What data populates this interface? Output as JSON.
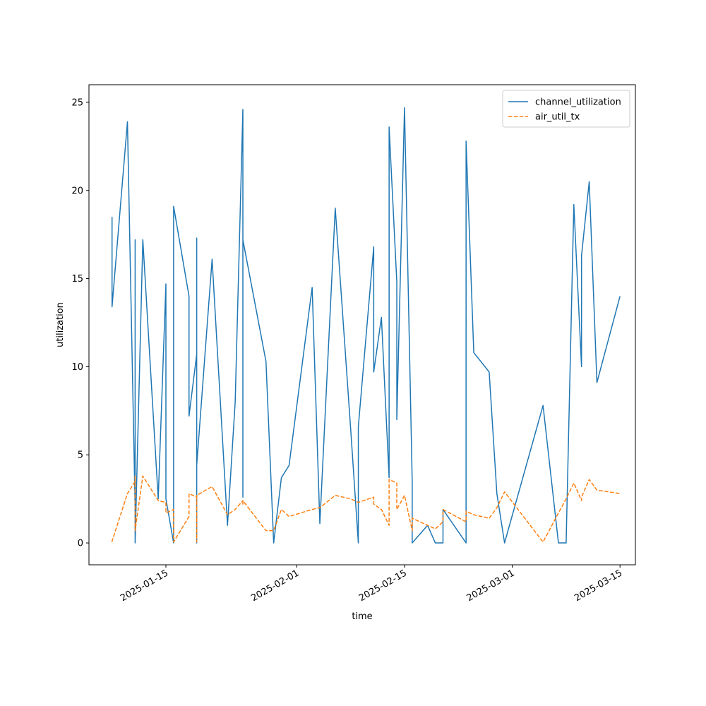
{
  "chart_data": {
    "type": "line",
    "xlabel": "time",
    "ylabel": "utilization",
    "x": [
      "2025-01-08",
      "2025-01-08",
      "2025-01-10",
      "2025-01-11",
      "2025-01-11",
      "2025-01-11",
      "2025-01-12",
      "2025-01-14",
      "2025-01-15",
      "2025-01-15",
      "2025-01-16",
      "2025-01-16",
      "2025-01-18",
      "2025-01-18",
      "2025-01-19",
      "2025-01-19",
      "2025-01-19",
      "2025-01-19",
      "2025-01-21",
      "2025-01-23",
      "2025-01-24",
      "2025-01-25",
      "2025-01-25",
      "2025-01-25",
      "2025-01-28",
      "2025-01-29",
      "2025-01-30",
      "2025-01-31",
      "2025-02-03",
      "2025-02-04",
      "2025-02-06",
      "2025-02-08",
      "2025-02-09",
      "2025-02-09",
      "2025-02-11",
      "2025-02-11",
      "2025-02-12",
      "2025-02-13",
      "2025-02-13",
      "2025-02-14",
      "2025-02-14",
      "2025-02-15",
      "2025-02-16",
      "2025-02-16",
      "2025-02-18",
      "2025-02-19",
      "2025-02-20",
      "2025-02-20",
      "2025-02-23",
      "2025-02-23",
      "2025-02-24",
      "2025-02-26",
      "2025-02-27",
      "2025-02-28",
      "2025-03-05",
      "2025-03-07",
      "2025-03-08",
      "2025-03-09",
      "2025-03-10",
      "2025-03-10",
      "2025-03-11",
      "2025-03-12",
      "2025-03-15"
    ],
    "series": [
      {
        "name": "channel_utilization",
        "color": "#1f77b4",
        "dash": false,
        "values": [
          18.5,
          13.4,
          23.9,
          2.0,
          17.2,
          0,
          17.2,
          2.5,
          14.7,
          2.5,
          0,
          19.1,
          14.0,
          7.2,
          10.7,
          0,
          17.3,
          4.4,
          16.1,
          1.0,
          8.0,
          24.6,
          2.6,
          17.2,
          10.3,
          0,
          3.7,
          4.4,
          14.5,
          1.1,
          19.0,
          6.5,
          0,
          6.6,
          16.8,
          9.7,
          12.8,
          3.7,
          23.6,
          14.8,
          7.0,
          24.7,
          3.5,
          0,
          1.0,
          0,
          0,
          1.9,
          0,
          22.8,
          10.8,
          9.7,
          2.8,
          0,
          7.8,
          0,
          0,
          19.2,
          10.0,
          16.3,
          20.5,
          9.1,
          14.0
        ]
      },
      {
        "name": "air_util_tx",
        "color": "#ff7f0e",
        "dash": true,
        "values": [
          0.05,
          0.1,
          2.8,
          3.5,
          3.8,
          0.7,
          3.8,
          2.4,
          2.3,
          1.7,
          1.9,
          0.05,
          1.5,
          2.8,
          2.6,
          0.05,
          2.7,
          2.7,
          3.2,
          1.6,
          1.9,
          2.4,
          2.2,
          2.4,
          0.7,
          0.7,
          1.9,
          1.5,
          1.9,
          2.0,
          2.7,
          2.5,
          2.3,
          2.3,
          2.6,
          2.2,
          1.9,
          1.0,
          3.6,
          3.4,
          1.9,
          2.7,
          0.7,
          1.4,
          1.0,
          0.8,
          1.2,
          1.9,
          1.2,
          1.8,
          1.6,
          1.4,
          2.0,
          2.9,
          0.05,
          1.7,
          2.5,
          3.4,
          2.4,
          2.6,
          3.6,
          3.0,
          2.8
        ]
      }
    ],
    "xlim": [
      "2025-01-05",
      "2025-03-17"
    ],
    "xticks": [
      "2025-01-15",
      "2025-02-01",
      "2025-02-15",
      "2025-03-01",
      "2025-03-15"
    ],
    "ylim": [
      -1.24,
      26.0
    ],
    "yticks": [
      0,
      5,
      10,
      15,
      20,
      25
    ],
    "legend": "upper right"
  }
}
